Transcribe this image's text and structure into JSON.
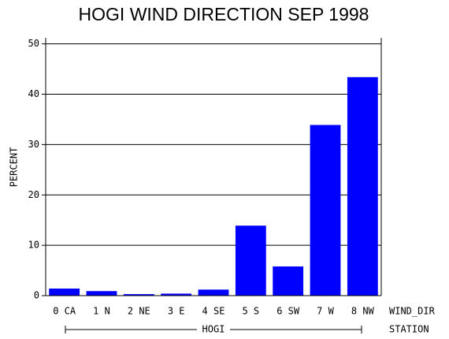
{
  "chart_data": {
    "type": "bar",
    "title": "HOGI WIND DIRECTION SEP 1998",
    "y_label": "PERCENT",
    "x_label": "WIND_DIR",
    "group_label": "HOGI",
    "group_title": "STATION",
    "categories": [
      "0 CA",
      "1 N",
      "2 NE",
      "3 E",
      "4 SE",
      "5 S",
      "6 SW",
      "7 W",
      "8 NW"
    ],
    "values": [
      1.4,
      0.9,
      0.3,
      0.4,
      1.2,
      13.9,
      5.8,
      33.9,
      43.4
    ],
    "color": "#0000ff",
    "ylim": [
      0,
      51.2
    ],
    "yticks": [
      0,
      10,
      20,
      30,
      40,
      50
    ],
    "grid": true
  }
}
